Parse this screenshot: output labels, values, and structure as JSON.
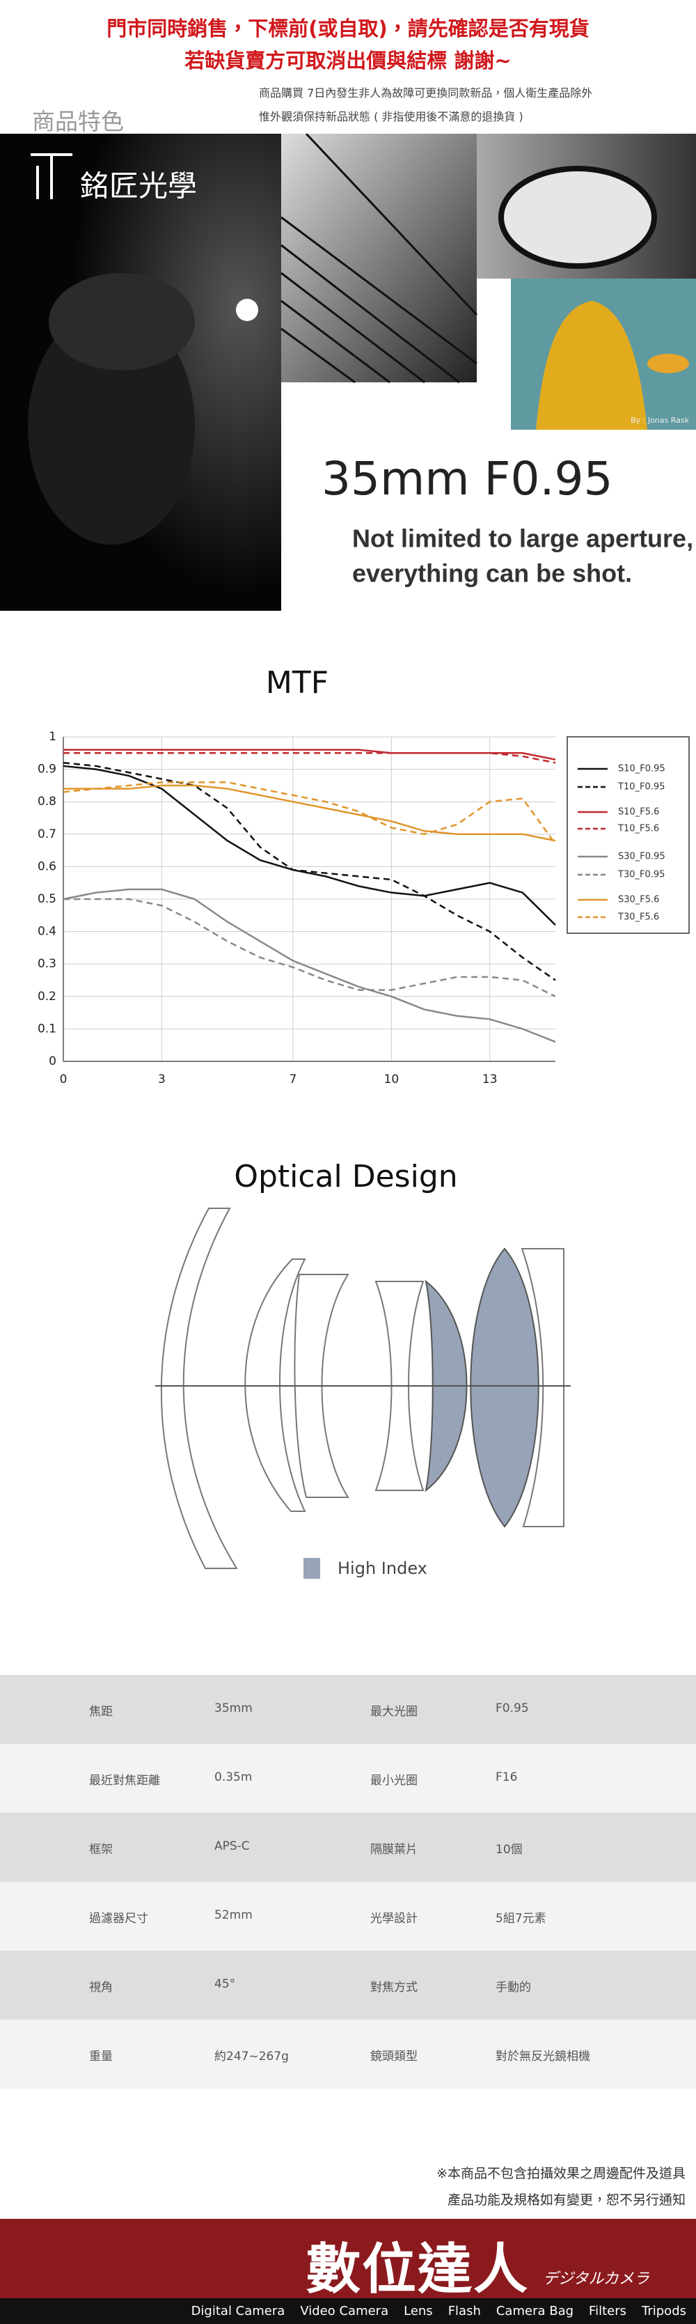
{
  "header": {
    "notice_lines": [
      "門市同時銷售，下標前(或自取)，請先確認是否有現貨",
      "若缺貨賣方可取消出價與結標  謝謝~"
    ],
    "section_label": "商品特色",
    "info_lines": [
      "商品購買 7日內發生非人為故障可更換同款新品，個人衛生產品除外",
      "惟外觀須保持新品狀態 ( 非指使用後不滿意的退換貨 )"
    ]
  },
  "hero": {
    "brand": "銘匠光學",
    "photo_credit": "By : Jonas Rask",
    "model": "35mm F0.95",
    "tagline": [
      "Not limited to large aperture,",
      "everything can be shot."
    ]
  },
  "chart_data": {
    "type": "line",
    "title": "MTF",
    "x": [
      0,
      1,
      2,
      3,
      4,
      5,
      6,
      7,
      8,
      9,
      10,
      11,
      12,
      13,
      14,
      15
    ],
    "series": [
      {
        "name": "S10_F0.95",
        "color": "#111111",
        "dash": false,
        "values": [
          0.91,
          0.9,
          0.88,
          0.84,
          0.76,
          0.68,
          0.62,
          0.59,
          0.57,
          0.54,
          0.52,
          0.51,
          0.53,
          0.55,
          0.52,
          0.42
        ]
      },
      {
        "name": "T10_F0.95",
        "color": "#111111",
        "dash": true,
        "values": [
          0.92,
          0.91,
          0.89,
          0.87,
          0.85,
          0.78,
          0.66,
          0.59,
          0.58,
          0.57,
          0.56,
          0.51,
          0.45,
          0.4,
          0.32,
          0.25
        ]
      },
      {
        "name": "S10_F5.6",
        "color": "#c0272d",
        "dash": false,
        "values": [
          0.96,
          0.96,
          0.96,
          0.96,
          0.96,
          0.96,
          0.96,
          0.96,
          0.96,
          0.96,
          0.95,
          0.95,
          0.95,
          0.95,
          0.95,
          0.93
        ]
      },
      {
        "name": "T10_F5.6",
        "color": "#c0272d",
        "dash": true,
        "values": [
          0.95,
          0.95,
          0.95,
          0.95,
          0.95,
          0.95,
          0.95,
          0.95,
          0.95,
          0.95,
          0.95,
          0.95,
          0.95,
          0.95,
          0.94,
          0.92
        ]
      },
      {
        "name": "S30_F0.95",
        "color": "#888888",
        "dash": false,
        "values": [
          0.5,
          0.52,
          0.53,
          0.53,
          0.5,
          0.43,
          0.37,
          0.31,
          0.27,
          0.23,
          0.2,
          0.16,
          0.14,
          0.13,
          0.1,
          0.06
        ]
      },
      {
        "name": "T30_F0.95",
        "color": "#888888",
        "dash": true,
        "values": [
          0.5,
          0.5,
          0.5,
          0.48,
          0.43,
          0.37,
          0.32,
          0.29,
          0.25,
          0.22,
          0.22,
          0.24,
          0.26,
          0.26,
          0.25,
          0.2
        ]
      },
      {
        "name": "S30_F5.6",
        "color": "#e0952a",
        "dash": false,
        "values": [
          0.84,
          0.84,
          0.84,
          0.85,
          0.85,
          0.84,
          0.82,
          0.8,
          0.78,
          0.76,
          0.74,
          0.71,
          0.7,
          0.7,
          0.7,
          0.68
        ]
      },
      {
        "name": "T30_F5.6",
        "color": "#e0952a",
        "dash": true,
        "values": [
          0.83,
          0.84,
          0.85,
          0.86,
          0.86,
          0.86,
          0.84,
          0.82,
          0.8,
          0.77,
          0.72,
          0.7,
          0.73,
          0.8,
          0.81,
          0.67
        ]
      }
    ],
    "xlim": [
      0,
      15
    ],
    "ylim": [
      0,
      1
    ],
    "xticks": [
      0,
      3,
      7,
      10,
      13
    ],
    "yticks": [
      0,
      0.1,
      0.2,
      0.3,
      0.4,
      0.5,
      0.6,
      0.7,
      0.8,
      0.9,
      1
    ],
    "grid": true
  },
  "optical": {
    "title": "Optical Design",
    "legend": "High Index",
    "legend_color": "#97a3b6"
  },
  "specs": {
    "rows": [
      [
        "焦距",
        "35mm",
        "最大光圈",
        "F0.95"
      ],
      [
        "最近對焦距離",
        "0.35m",
        "最小光圈",
        "F16"
      ],
      [
        "框架",
        "APS-C",
        "隔膜葉片",
        "10個"
      ],
      [
        "過濾器尺寸",
        "52mm",
        "光學設計",
        "5組7元素"
      ],
      [
        "視角",
        "45°",
        "對焦方式",
        "手動的"
      ],
      [
        "重量",
        "約247~267g",
        "鏡頭類型",
        "對於無反光鏡相機"
      ]
    ]
  },
  "footnotes": [
    "※本商品不包含拍攝效果之周邊配件及道具",
    "產品功能及規格如有變更，恕不另行通知"
  ],
  "footer": {
    "brand": "數位達人",
    "brand_sub": "デジタルカメラ",
    "nav": [
      "Digital Camera",
      "Video Camera",
      "Lens",
      "Flash",
      "Camera Bag",
      "Filters",
      "Tripods"
    ]
  }
}
